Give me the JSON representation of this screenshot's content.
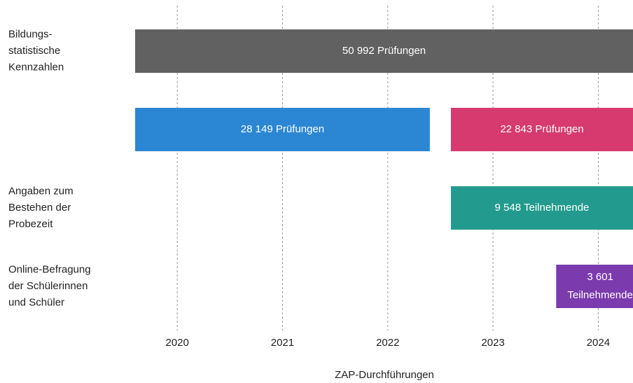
{
  "chart_data": {
    "type": "timeline",
    "x_label": "ZAP-Durchführungen",
    "xlim": [
      2019.6,
      2024.33
    ],
    "xticks": [
      2020,
      2021,
      2022,
      2023,
      2024
    ],
    "grid": true,
    "rows": [
      {
        "label_lines": [
          "Bildungs-",
          "statistische",
          "Kennzahlen"
        ],
        "bars": [
          {
            "label_lines": [
              "50 992 Prüfungen"
            ],
            "start": 2019.6,
            "end": 2024.33,
            "color": "#616161"
          }
        ]
      },
      {
        "label_lines": [],
        "bars": [
          {
            "label_lines": [
              "28 149 Prüfungen"
            ],
            "start": 2019.6,
            "end": 2022.4,
            "color": "#2b87d3"
          },
          {
            "label_lines": [
              "22 843 Prüfungen"
            ],
            "start": 2022.6,
            "end": 2024.33,
            "color": "#d63a6e"
          }
        ]
      },
      {
        "label_lines": [
          "Angaben zum",
          "Bestehen der",
          "Probezeit"
        ],
        "bars": [
          {
            "label_lines": [
              "9 548 Teilnehmende"
            ],
            "start": 2022.6,
            "end": 2024.33,
            "color": "#239a8e"
          }
        ]
      },
      {
        "label_lines": [
          "Online-Befragung",
          "der Schülerinnen",
          "und Schüler"
        ],
        "bars": [
          {
            "label_lines": [
              "3 601",
              "Teilnehmende"
            ],
            "start": 2023.6,
            "end": 2024.33,
            "color": "#7b3aad"
          }
        ]
      }
    ]
  }
}
